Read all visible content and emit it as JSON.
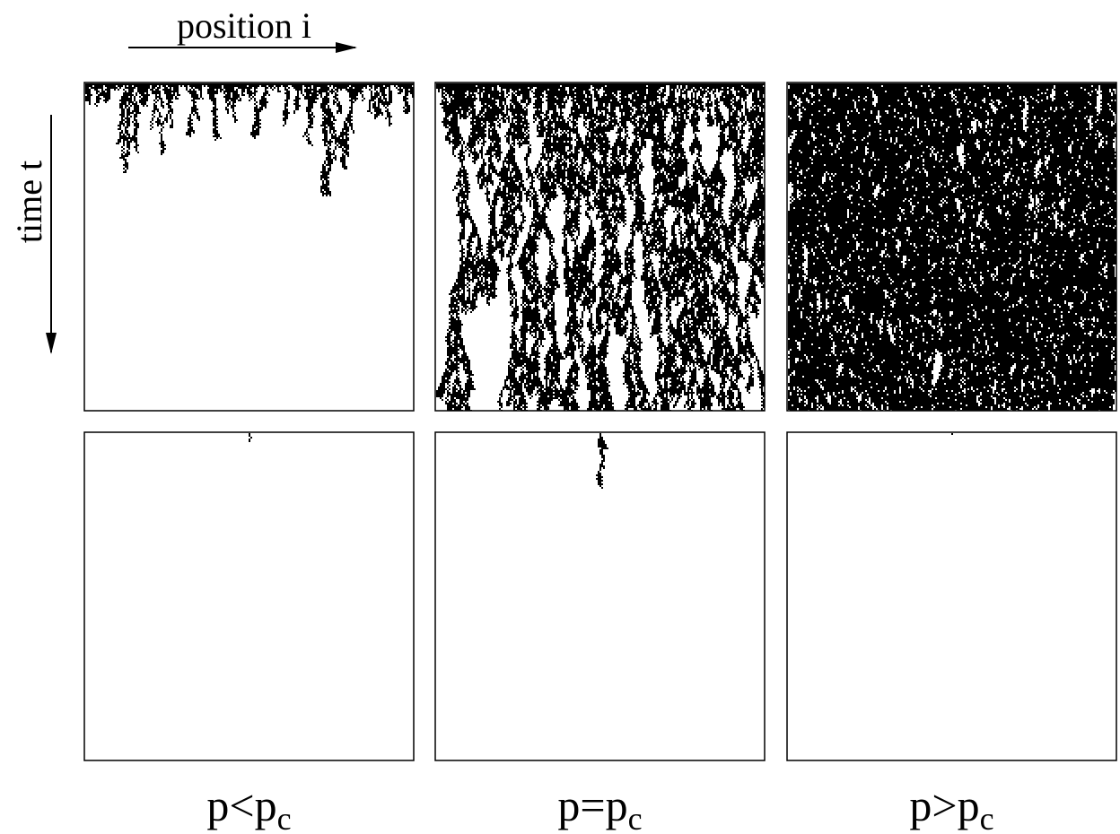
{
  "axes": {
    "horizontal": "position i",
    "vertical": "time t"
  },
  "columns": [
    {
      "label": "p<p",
      "subscript": "c"
    },
    {
      "label": "p=p",
      "subscript": "c"
    },
    {
      "label": "p>p",
      "subscript": "c"
    }
  ]
}
